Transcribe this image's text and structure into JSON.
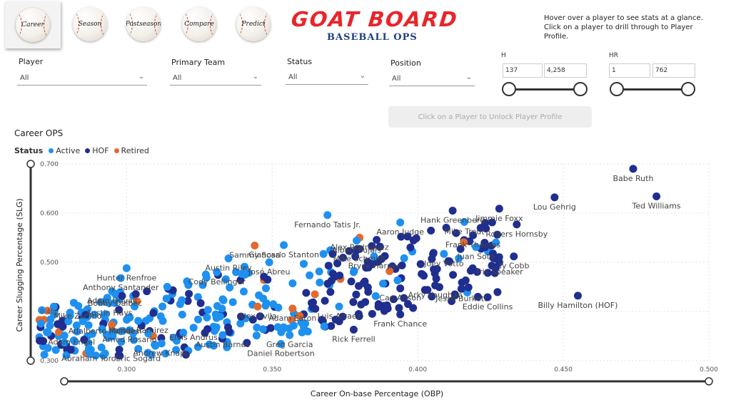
{
  "nav": [
    {
      "label": "Career",
      "active": true
    },
    {
      "label": "Season",
      "active": false
    },
    {
      "label": "Postseason",
      "active": false
    },
    {
      "label": "Compare",
      "active": false
    },
    {
      "label": "Predict",
      "active": false
    }
  ],
  "logo": {
    "title": "GOAT BOARD",
    "subtitle": "BASEBALL OPS",
    "title_color": "#e8262b",
    "subtitle_color": "#1f3f7f"
  },
  "hint": "Hover over a player to see stats at a glance. Click on a player to drill through to Player Profile.",
  "filters": {
    "player": {
      "label": "Player",
      "value": "All"
    },
    "team": {
      "label": "Primary Team",
      "value": "All"
    },
    "status": {
      "label": "Status",
      "value": "All"
    },
    "position": {
      "label": "Position",
      "value": "All"
    }
  },
  "ranges": {
    "h": {
      "label": "H",
      "min": "137",
      "max": "4,258"
    },
    "hr": {
      "label": "HR",
      "min": "1",
      "max": "762"
    }
  },
  "profile_button": "Click on a Player to Unlock Player Profile",
  "chart_title": "Career OPS",
  "legend": {
    "title": "Status",
    "items": [
      {
        "label": "Active",
        "color": "#1e90f0"
      },
      {
        "label": "HOF",
        "color": "#1f2e8f"
      },
      {
        "label": "Retired",
        "color": "#e06a2e"
      }
    ]
  },
  "chart_data": {
    "type": "scatter",
    "title": "Career OPS",
    "xlabel": "Career On-base Percentage (OBP)",
    "ylabel": "Career Slugging Percentage (SLG)",
    "xlim": [
      0.27,
      0.5
    ],
    "ylim": [
      0.3,
      0.7
    ],
    "xticks": [
      "0.300",
      "0.350",
      "0.400",
      "0.450",
      "0.500"
    ],
    "yticks": [
      "0.300",
      "0.400",
      "0.500",
      "0.600",
      "0.700"
    ],
    "grid": true,
    "labeled_points": [
      {
        "name": "Babe Ruth",
        "x": 0.474,
        "y": 0.69,
        "status": "HOF"
      },
      {
        "name": "Ted Williams",
        "x": 0.482,
        "y": 0.634,
        "status": "HOF"
      },
      {
        "name": "Lou Gehrig",
        "x": 0.447,
        "y": 0.632,
        "status": "HOF"
      },
      {
        "name": "Jimmie Foxx",
        "x": 0.428,
        "y": 0.609,
        "status": "HOF"
      },
      {
        "name": "Rogers Hornsby",
        "x": 0.434,
        "y": 0.577,
        "status": "HOF"
      },
      {
        "name": "Hank Greenberg",
        "x": 0.412,
        "y": 0.605,
        "status": "HOF"
      },
      {
        "name": "Mike Trout",
        "x": 0.416,
        "y": 0.582,
        "status": "Active"
      },
      {
        "name": "Joey Votto",
        "x": 0.409,
        "y": 0.517,
        "status": "Active"
      },
      {
        "name": "Frank Thomas",
        "x": 0.419,
        "y": 0.555,
        "status": "HOF"
      },
      {
        "name": "Ty Cobb",
        "x": 0.433,
        "y": 0.512,
        "status": "HOF"
      },
      {
        "name": "Juan Soto",
        "x": 0.42,
        "y": 0.531,
        "status": "Active"
      },
      {
        "name": "Tris Speaker",
        "x": 0.428,
        "y": 0.5,
        "status": "HOF"
      },
      {
        "name": "Jesse Burkett",
        "x": 0.415,
        "y": 0.446,
        "status": "HOF"
      },
      {
        "name": "Eddie Collins",
        "x": 0.424,
        "y": 0.429,
        "status": "HOF"
      },
      {
        "name": "Billy Hamilton (HOF)",
        "x": 0.455,
        "y": 0.432,
        "status": "HOF"
      },
      {
        "name": "Fernando Tatis Jr.",
        "x": 0.369,
        "y": 0.596,
        "status": "Active"
      },
      {
        "name": "Aaron Judge",
        "x": 0.394,
        "y": 0.581,
        "status": "Active"
      },
      {
        "name": "Alex Rodriguez",
        "x": 0.38,
        "y": 0.55,
        "status": "Retired"
      },
      {
        "name": "Sammy Sosa",
        "x": 0.344,
        "y": 0.534,
        "status": "Retired"
      },
      {
        "name": "Giancarlo Stanton",
        "x": 0.354,
        "y": 0.535,
        "status": "Active"
      },
      {
        "name": "Albert Pujols",
        "x": 0.379,
        "y": 0.544,
        "status": "Active"
      },
      {
        "name": "Austin Riley",
        "x": 0.335,
        "y": 0.508,
        "status": "Active"
      },
      {
        "name": "José Abreu",
        "x": 0.349,
        "y": 0.5,
        "status": "Active"
      },
      {
        "name": "Mike Schmidt",
        "x": 0.38,
        "y": 0.527,
        "status": "HOF"
      },
      {
        "name": "Bryce Harper",
        "x": 0.385,
        "y": 0.512,
        "status": "Active"
      },
      {
        "name": "Arky Vaughan",
        "x": 0.406,
        "y": 0.453,
        "status": "HOF"
      },
      {
        "name": "Cap Anson",
        "x": 0.394,
        "y": 0.447,
        "status": "HOF"
      },
      {
        "name": "Frank Chance",
        "x": 0.394,
        "y": 0.394,
        "status": "HOF"
      },
      {
        "name": "Rick Ferrell",
        "x": 0.378,
        "y": 0.363,
        "status": "HOF"
      },
      {
        "name": "Luis Arraez",
        "x": 0.373,
        "y": 0.41,
        "status": "Active"
      },
      {
        "name": "Adam Eaton",
        "x": 0.357,
        "y": 0.406,
        "status": "Retired"
      },
      {
        "name": "Greg Garcia",
        "x": 0.356,
        "y": 0.352,
        "status": "Active"
      },
      {
        "name": "Daniel Robertson",
        "x": 0.353,
        "y": 0.334,
        "status": "Active"
      },
      {
        "name": "Austin Barnes",
        "x": 0.333,
        "y": 0.352,
        "status": "Active"
      },
      {
        "name": "Andrew Knapp",
        "x": 0.312,
        "y": 0.335,
        "status": "Active"
      },
      {
        "name": "Elvis Andrus",
        "x": 0.323,
        "y": 0.367,
        "status": "Active"
      },
      {
        "name": "Harold Ramirez",
        "x": 0.304,
        "y": 0.381,
        "status": "Active"
      },
      {
        "name": "Austin Hays",
        "x": 0.294,
        "y": 0.417,
        "status": "Active"
      },
      {
        "name": "Bobby Dalbec",
        "x": 0.296,
        "y": 0.436,
        "status": "Active"
      },
      {
        "name": "Adam Duvall",
        "x": 0.295,
        "y": 0.441,
        "status": "Active"
      },
      {
        "name": "Anthony Santander",
        "x": 0.298,
        "y": 0.468,
        "status": "Active"
      },
      {
        "name": "Hunter Renfroe",
        "x": 0.3,
        "y": 0.488,
        "status": "Active"
      },
      {
        "name": "Cody Bellinger",
        "x": 0.331,
        "y": 0.48,
        "status": "Active"
      },
      {
        "name": "Mike Zunino",
        "x": 0.275,
        "y": 0.41,
        "status": "Active"
      },
      {
        "name": "Adalberto Mondesi",
        "x": 0.28,
        "y": 0.38,
        "status": "Active"
      },
      {
        "name": "Adam Engel",
        "x": 0.273,
        "y": 0.357,
        "status": "Active"
      },
      {
        "name": "Abraham Toro",
        "x": 0.287,
        "y": 0.324,
        "status": "Active"
      },
      {
        "name": "Eric Sogard",
        "x": 0.304,
        "y": 0.324,
        "status": "Active"
      },
      {
        "name": "Amed Rosario",
        "x": 0.301,
        "y": 0.362,
        "status": "Active"
      },
      {
        "name": "Alex Avila",
        "x": 0.345,
        "y": 0.41,
        "status": "Retired"
      }
    ]
  }
}
